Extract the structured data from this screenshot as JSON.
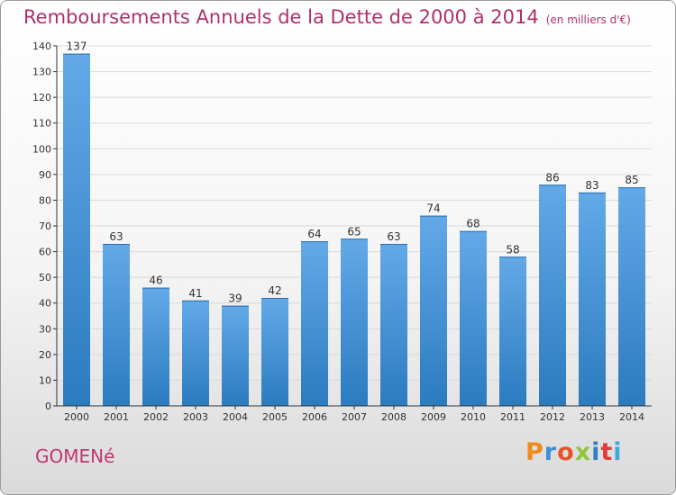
{
  "title": "Remboursements Annuels de la Dette de 2000 à 2014",
  "unit_note": "(en milliers d'€)",
  "commune": "GOMENé",
  "logo": {
    "text": "Proxiti",
    "letter_colors": [
      "#f08a1c",
      "#3f8fd6",
      "#e8542a",
      "#8dc63f",
      "#2f80c4",
      "#e23a3a",
      "#3fa9d6"
    ]
  },
  "colors": {
    "bar_top": "#63a9e8",
    "bar_bottom": "#2b7bbf",
    "axis": "#333333",
    "grid": "#d9d9d9",
    "title": "#b0306a"
  },
  "chart_data": {
    "type": "bar",
    "categories": [
      "2000",
      "2001",
      "2002",
      "2003",
      "2004",
      "2005",
      "2006",
      "2007",
      "2008",
      "2009",
      "2010",
      "2011",
      "2012",
      "2013",
      "2014"
    ],
    "values": [
      137,
      63,
      46,
      41,
      39,
      42,
      64,
      65,
      63,
      74,
      68,
      58,
      86,
      83,
      85
    ],
    "ylim": [
      0,
      140
    ],
    "yticks": [
      0,
      10,
      20,
      30,
      40,
      50,
      60,
      70,
      80,
      90,
      100,
      110,
      120,
      130,
      140
    ],
    "grid": true,
    "data_labels": true
  }
}
